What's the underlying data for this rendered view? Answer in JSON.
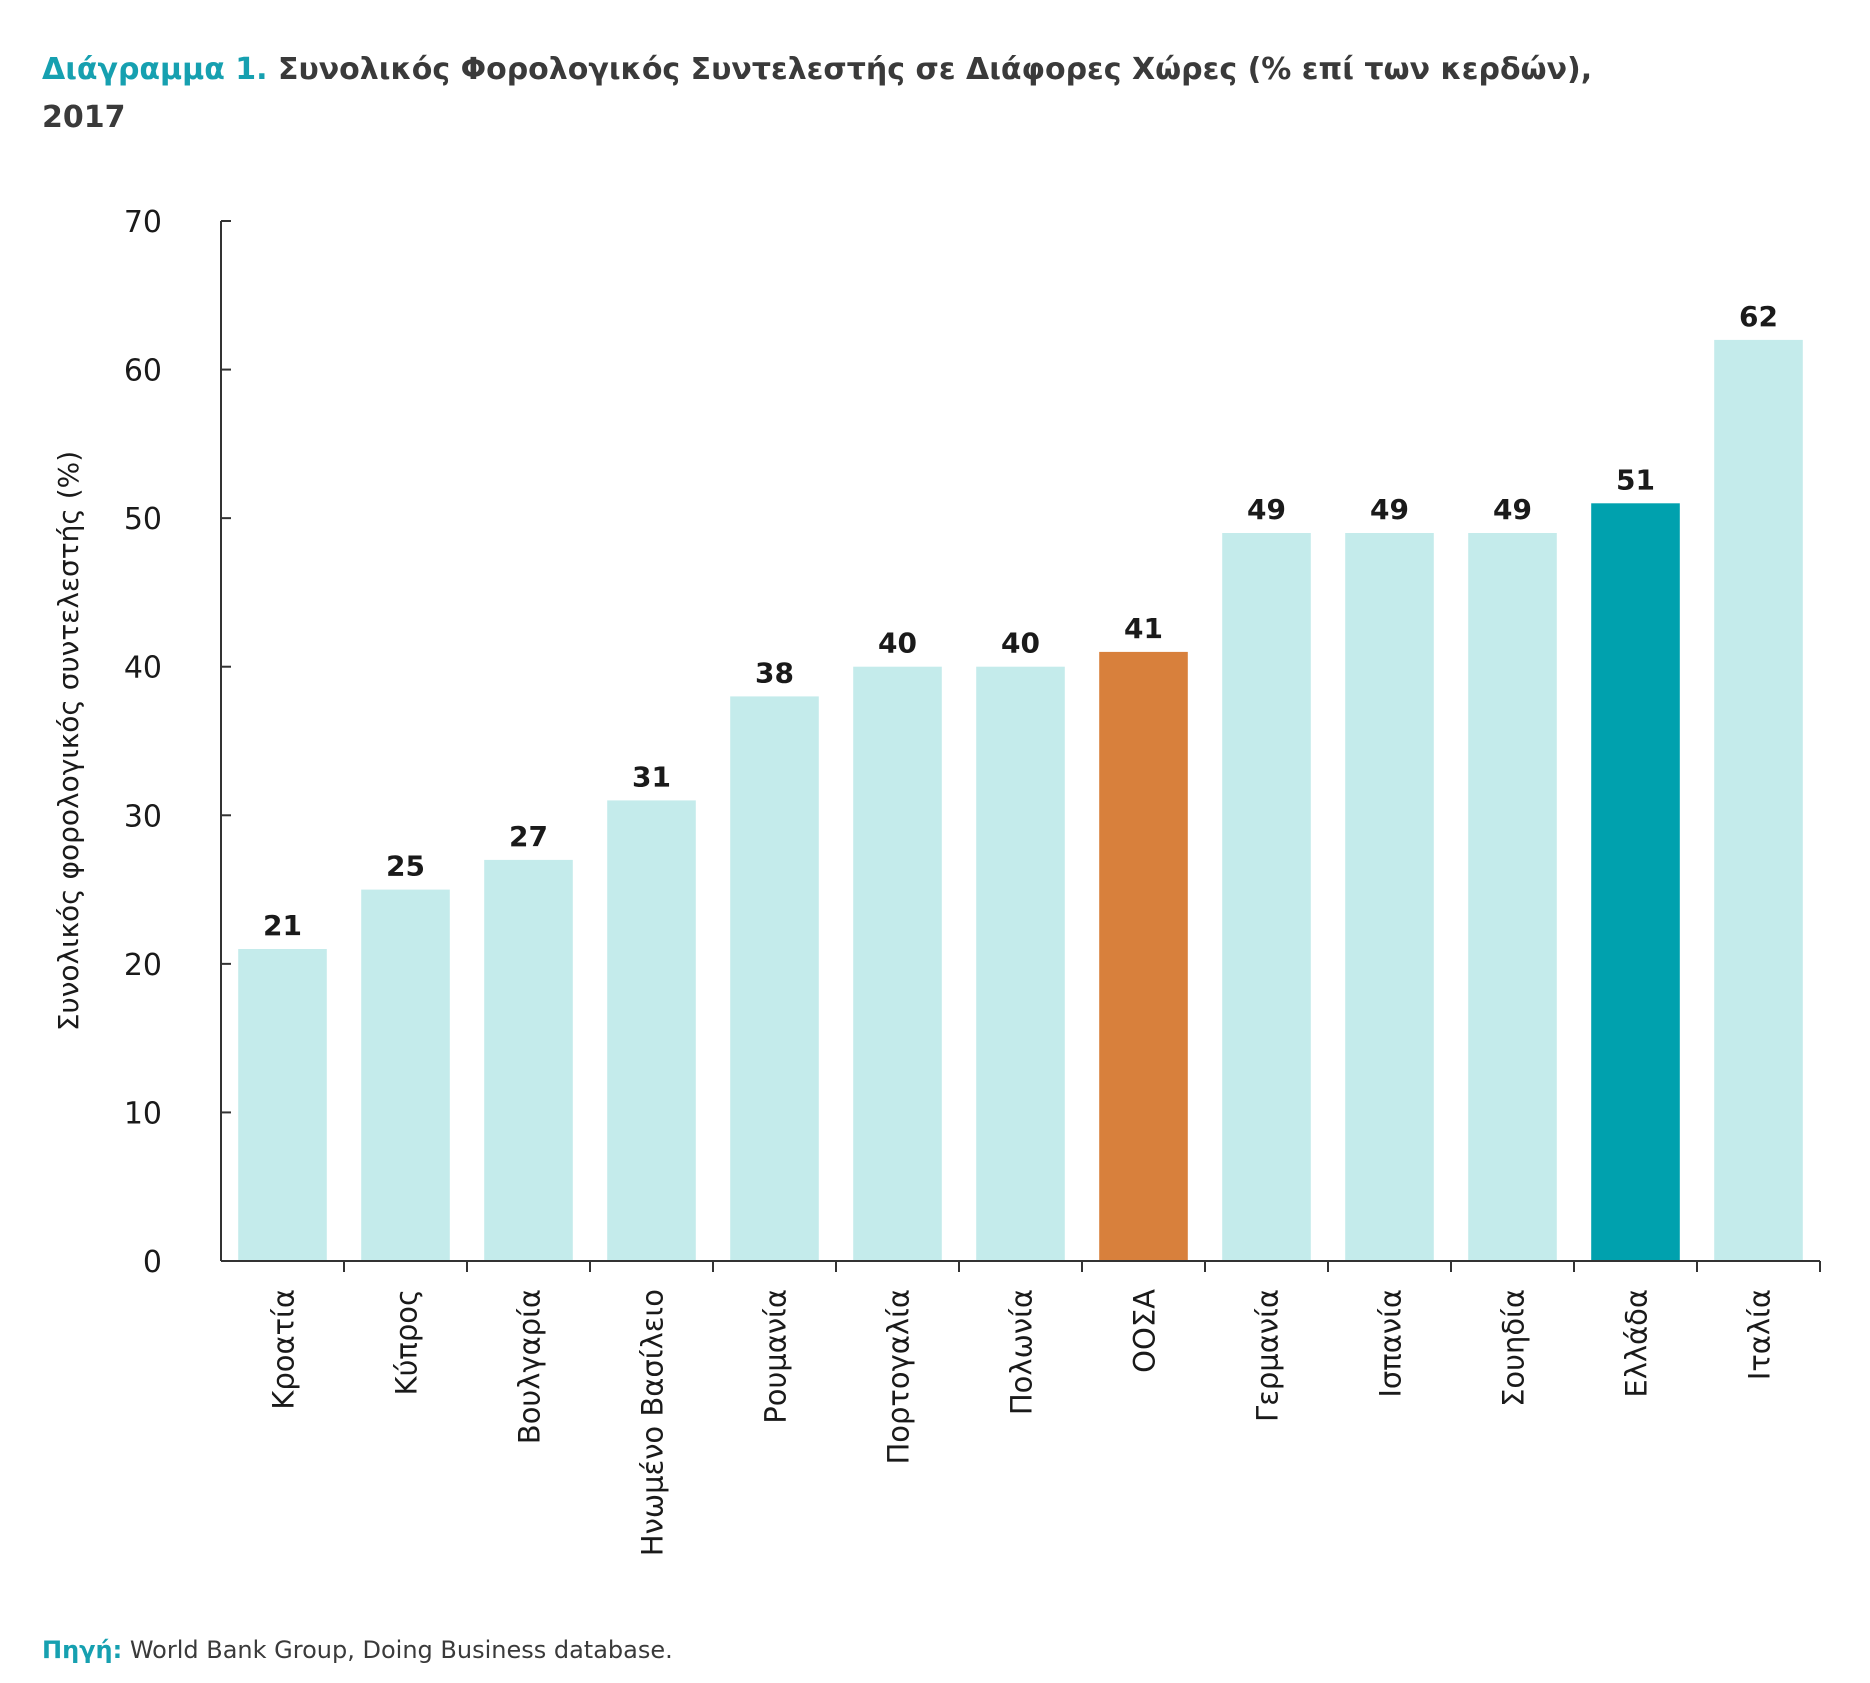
{
  "title": {
    "prefix": "Διάγραμμα 1.",
    "text": "Συνολικός Φορολογικός Συντελεστής σε Διάφορες Χώρες (% επί των κερδών), 2017"
  },
  "source": {
    "label": "Πηγή:",
    "text": "World Bank Group, Doing Business database."
  },
  "colors": {
    "default_bar": "#c4ebeb",
    "oecd_bar": "#d8803c",
    "greece_bar": "#00a1ae",
    "accent": "#16a0b0",
    "axis": "#333333",
    "text": "#1a1a1a"
  },
  "chart_data": {
    "type": "bar",
    "title": "Συνολικός Φορολογικός Συντελεστής σε Διάφορες Χώρες (% επί των κερδών), 2017",
    "xlabel": "",
    "ylabel": "Συνολικός φορολογικός συντελεστής (%)",
    "ylim": [
      0,
      70
    ],
    "yticks": [
      "0",
      "10",
      "20",
      "30",
      "40",
      "50",
      "60",
      "70"
    ],
    "grid": false,
    "data_labels": true,
    "categories": [
      "Κροατία",
      "Κύπρος",
      "Βουλγαρία",
      "Ηνωμένο Βασίλειο",
      "Ρουμανία",
      "Πορτογαλία",
      "Πολωνία",
      "ΟΟΣΑ",
      "Γερμανία",
      "Ισπανία",
      "Σουηδία",
      "Ελλάδα",
      "Ιταλία"
    ],
    "values": [
      21,
      25,
      27,
      31,
      38,
      40,
      40,
      41,
      49,
      49,
      49,
      51,
      62
    ],
    "bar_colors": [
      "#c4ebeb",
      "#c4ebeb",
      "#c4ebeb",
      "#c4ebeb",
      "#c4ebeb",
      "#c4ebeb",
      "#c4ebeb",
      "#d8803c",
      "#c4ebeb",
      "#c4ebeb",
      "#c4ebeb",
      "#00a1ae",
      "#c4ebeb"
    ]
  }
}
